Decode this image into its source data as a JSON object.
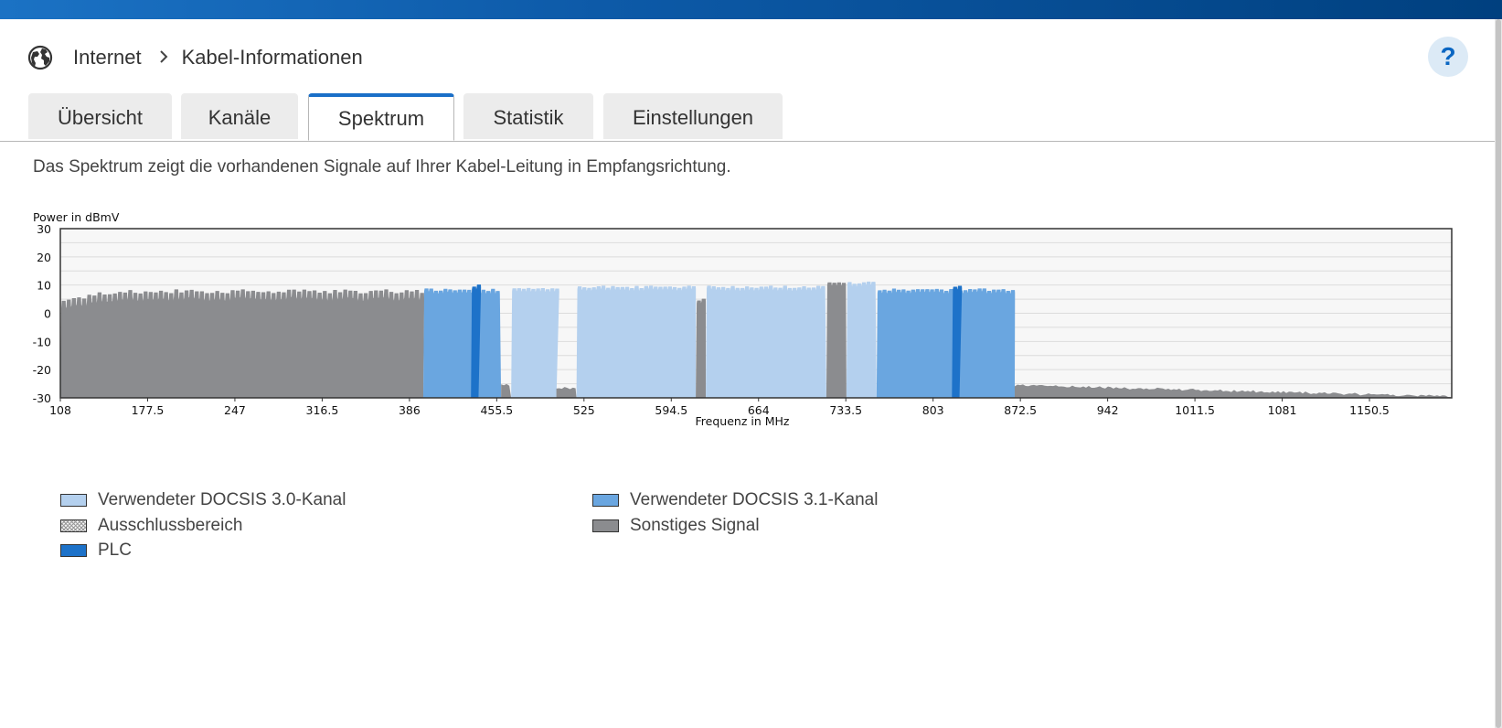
{
  "breadcrumb": {
    "section": "Internet",
    "page": "Kabel-Informationen"
  },
  "help": {
    "label": "?"
  },
  "tabs": [
    {
      "label": "Übersicht",
      "active": false
    },
    {
      "label": "Kanäle",
      "active": false
    },
    {
      "label": "Spektrum",
      "active": true
    },
    {
      "label": "Statistik",
      "active": false
    },
    {
      "label": "Einstellungen",
      "active": false
    }
  ],
  "description": "Das Spektrum zeigt die vorhandenen Signale auf Ihrer Kabel-Leitung in Empfangsrichtung.",
  "colors": {
    "docsis30": "#b4d0ee",
    "docsis31": "#6aa6e0",
    "plc": "#1d72c9",
    "other": "#8b8c8f",
    "accent": "#1a6fc8"
  },
  "chart_data": {
    "type": "area",
    "ylabel": "Power in dBmV",
    "xlabel": "Frequenz in MHz",
    "ylim": [
      -30,
      30
    ],
    "yticks": [
      "30",
      "20",
      "10",
      "0",
      "-10",
      "-20",
      "-30"
    ],
    "xlim": [
      108,
      1216
    ],
    "xticks": [
      "108",
      "177.5",
      "247",
      "316.5",
      "386",
      "455.5",
      "525",
      "594.5",
      "664",
      "733.5",
      "803",
      "872.5",
      "942",
      "1011.5",
      "1081",
      "1150.5"
    ],
    "grid": true,
    "regions": [
      {
        "type": "other",
        "from": 108,
        "to": 397,
        "level": 7
      },
      {
        "type": "docsis31",
        "from": 397,
        "to": 459,
        "level": 8.5
      },
      {
        "type": "plc",
        "from": 435,
        "to": 441,
        "level": 10
      },
      {
        "type": "other",
        "from": 459,
        "to": 467,
        "level": -26
      },
      {
        "type": "docsis30",
        "from": 467,
        "to": 503,
        "level": 9
      },
      {
        "type": "other",
        "from": 503,
        "to": 519,
        "level": -27
      },
      {
        "type": "docsis30",
        "from": 519,
        "to": 614,
        "level": 9.5
      },
      {
        "type": "other",
        "from": 614,
        "to": 622,
        "level": 5
      },
      {
        "type": "docsis30",
        "from": 622,
        "to": 718,
        "level": 9.5
      },
      {
        "type": "other",
        "from": 718,
        "to": 734,
        "level": 11
      },
      {
        "type": "docsis30",
        "from": 734,
        "to": 758,
        "level": 11
      },
      {
        "type": "docsis31",
        "from": 758,
        "to": 868,
        "level": 8.5
      },
      {
        "type": "plc",
        "from": 818,
        "to": 824,
        "level": 9.5
      },
      {
        "type": "other",
        "from": 868,
        "to": 1216,
        "level": -27
      }
    ]
  },
  "legend": [
    {
      "label": "Verwendeter DOCSIS 3.0-Kanal",
      "type": "docsis30"
    },
    {
      "label": "Verwendeter DOCSIS 3.1-Kanal",
      "type": "docsis31"
    },
    {
      "label": "Ausschlussbereich",
      "type": "exclusion"
    },
    {
      "label": "Sonstiges Signal",
      "type": "other"
    },
    {
      "label": "PLC",
      "type": "plc"
    }
  ]
}
